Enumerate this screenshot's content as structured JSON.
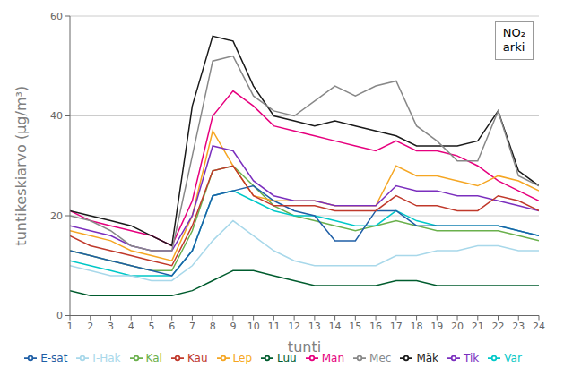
{
  "chart_data": {
    "type": "line",
    "annotation": "NO₂\narki",
    "xlabel": "tunti",
    "ylabel": "tuntikeskiarvo (µg/m³)",
    "x": [
      1,
      2,
      3,
      4,
      5,
      6,
      7,
      8,
      9,
      10,
      11,
      12,
      13,
      14,
      15,
      16,
      17,
      18,
      19,
      20,
      21,
      22,
      23,
      24
    ],
    "xlim": [
      1,
      24
    ],
    "xticks": [
      1,
      2,
      3,
      4,
      5,
      6,
      7,
      8,
      9,
      10,
      11,
      12,
      13,
      14,
      15,
      16,
      17,
      18,
      19,
      20,
      21,
      22,
      23,
      24
    ],
    "ylim": [
      0,
      60
    ],
    "yticks": [
      0,
      20,
      40,
      60
    ],
    "grid": true,
    "legend": "bottom",
    "series": [
      {
        "name": "Man",
        "color": "#e6007e",
        "values": [
          21,
          19,
          18,
          17,
          16,
          14,
          23,
          40,
          45,
          42,
          38,
          37,
          36,
          35,
          34,
          33,
          35,
          33,
          33,
          32,
          30,
          27,
          25,
          23
        ]
      },
      {
        "name": "Mäk",
        "color": "#1a1a1a",
        "values": [
          21,
          20,
          19,
          18,
          16,
          14,
          42,
          56,
          55,
          46,
          40,
          39,
          38,
          39,
          38,
          37,
          36,
          34,
          34,
          34,
          35,
          41,
          29,
          26
        ]
      },
      {
        "name": "Kal",
        "color": "#6ab04c",
        "values": [
          13,
          12,
          11,
          10,
          9,
          9,
          17,
          29,
          30,
          26,
          22,
          20,
          19,
          18,
          17,
          18,
          19,
          18,
          17,
          17,
          17,
          17,
          16,
          15
        ]
      },
      {
        "name": "Var",
        "color": "#00c8c8",
        "values": [
          11,
          10,
          9,
          8,
          8,
          8,
          13,
          24,
          25,
          23,
          21,
          20,
          20,
          19,
          18,
          18,
          21,
          19,
          18,
          18,
          18,
          18,
          17,
          16
        ]
      },
      {
        "name": "Lep",
        "color": "#f5a623",
        "values": [
          17,
          16,
          15,
          13,
          12,
          11,
          20,
          37,
          30,
          24,
          23,
          23,
          23,
          22,
          22,
          22,
          30,
          28,
          28,
          27,
          26,
          28,
          27,
          25
        ]
      },
      {
        "name": "Tik",
        "color": "#7b2fbe",
        "values": [
          18,
          17,
          16,
          14,
          13,
          13,
          20,
          34,
          33,
          27,
          24,
          23,
          23,
          22,
          22,
          22,
          26,
          25,
          25,
          24,
          24,
          23,
          22,
          21
        ]
      },
      {
        "name": "Luu",
        "color": "#005c2e",
        "values": [
          5,
          4,
          4,
          4,
          4,
          4,
          5,
          7,
          9,
          9,
          8,
          7,
          6,
          6,
          6,
          6,
          7,
          7,
          6,
          6,
          6,
          6,
          6,
          6
        ]
      },
      {
        "name": "E-sat",
        "color": "#1f5fa6",
        "values": [
          13,
          12,
          11,
          10,
          9,
          8,
          13,
          24,
          25,
          26,
          23,
          21,
          20,
          15,
          15,
          21,
          21,
          18,
          18,
          18,
          18,
          18,
          17,
          16
        ]
      },
      {
        "name": "Mec",
        "color": "#888888",
        "values": [
          20,
          19,
          17,
          14,
          13,
          13,
          32,
          51,
          52,
          44,
          41,
          40,
          43,
          46,
          44,
          46,
          47,
          38,
          35,
          31,
          31,
          41,
          28,
          26
        ]
      },
      {
        "name": "Kau",
        "color": "#c0392b",
        "values": [
          16,
          14,
          13,
          12,
          11,
          10,
          18,
          29,
          30,
          24,
          22,
          22,
          22,
          21,
          21,
          21,
          24,
          22,
          22,
          21,
          21,
          24,
          23,
          21
        ]
      },
      {
        "name": "I-Hak",
        "color": "#a8d8ea",
        "values": [
          10,
          9,
          8,
          8,
          7,
          7,
          10,
          15,
          19,
          16,
          13,
          11,
          10,
          10,
          10,
          10,
          12,
          12,
          13,
          13,
          14,
          14,
          13,
          13
        ]
      }
    ]
  }
}
